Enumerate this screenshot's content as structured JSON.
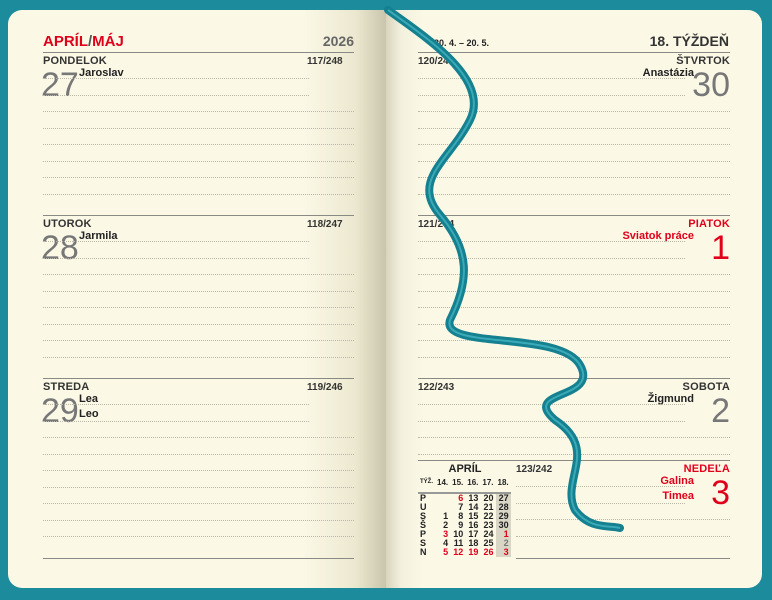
{
  "left": {
    "month_a": "APRÍL",
    "slash": "/",
    "month_b": "MÁJ",
    "year": "2026",
    "days": [
      {
        "name": "PONDELOK",
        "count": "117/248",
        "date": "27",
        "names": [
          "Jaroslav"
        ]
      },
      {
        "name": "UTOROK",
        "count": "118/247",
        "date": "28",
        "names": [
          "Jarmila"
        ]
      },
      {
        "name": "STREDA",
        "count": "119/246",
        "date": "29",
        "names": [
          "Lea",
          "Leo"
        ]
      }
    ]
  },
  "right": {
    "zodiac": "20. 4. – 20. 5.",
    "week": "18. TÝŽDEŇ",
    "days": [
      {
        "name": "ŠTVRTOK",
        "count": "120/245",
        "date": "30",
        "names": [
          "Anastázia"
        ]
      },
      {
        "name": "PIATOK",
        "count": "121/244",
        "date": "1",
        "names": [
          "Sviatok práce"
        ],
        "holiday": true
      },
      {
        "name": "SOBOTA",
        "count": "122/243",
        "date": "2",
        "names": [
          "Žigmund"
        ]
      },
      {
        "name": "NEDEĽA",
        "count": "123/242",
        "date": "3",
        "names": [
          "Galina",
          "Timea"
        ],
        "holiday": true
      }
    ]
  },
  "mini_calendar": {
    "title": "APRÍL",
    "week_label": "TÝŽ.",
    "weeks": [
      "14.",
      "15.",
      "16.",
      "17.",
      "18."
    ],
    "rows": [
      [
        "P",
        "",
        "6",
        "13",
        "20",
        "27"
      ],
      [
        "U",
        "",
        "7",
        "14",
        "21",
        "28"
      ],
      [
        "S",
        "1",
        "8",
        "15",
        "22",
        "29"
      ],
      [
        "Š",
        "2",
        "9",
        "16",
        "23",
        "30"
      ],
      [
        "P",
        "3",
        "10",
        "17",
        "24",
        "1"
      ],
      [
        "S",
        "4",
        "11",
        "18",
        "25",
        "2"
      ],
      [
        "N",
        "5",
        "12",
        "19",
        "26",
        "3"
      ]
    ]
  },
  "colors": {
    "accent": "#e1001a",
    "cover": "#1c8c9c",
    "ribbon": "#167f8e",
    "paper": "#fbf8e6"
  }
}
